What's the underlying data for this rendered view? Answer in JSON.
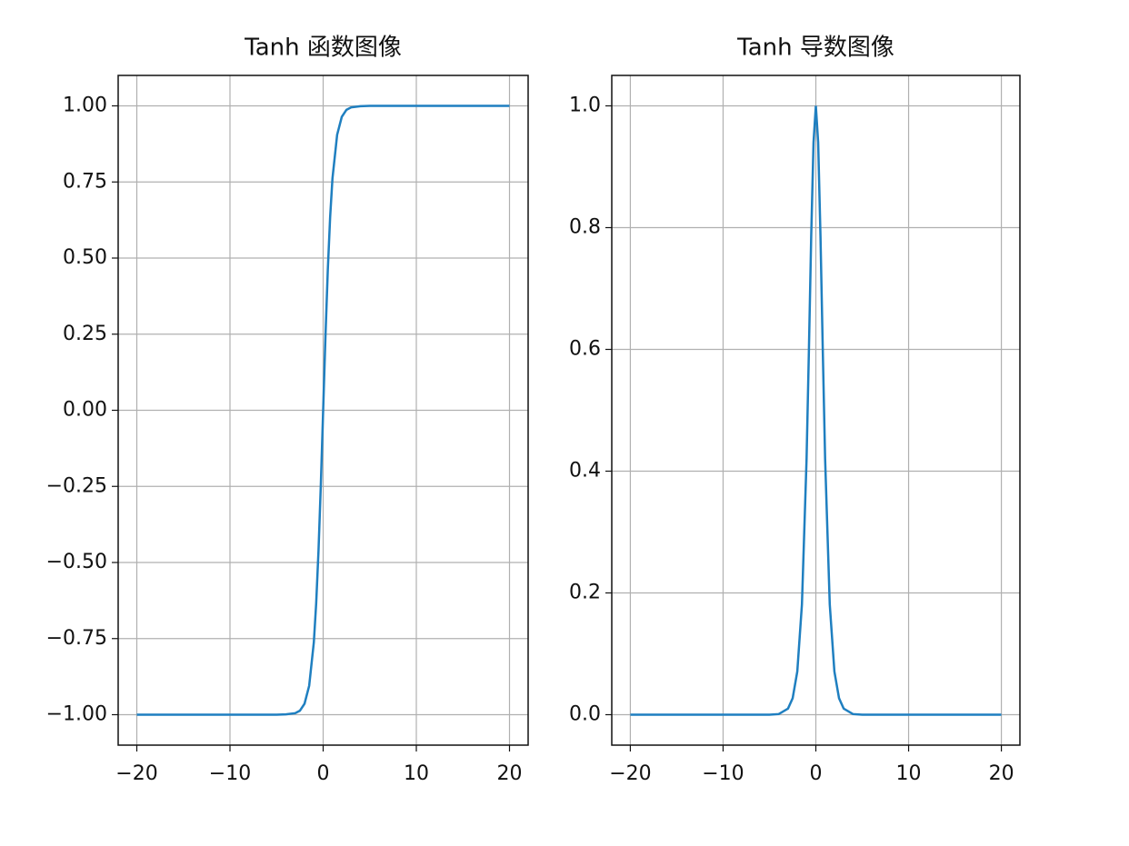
{
  "chart_data": [
    {
      "type": "line",
      "title": "Tanh 函数图像",
      "x": [
        -20,
        -10,
        -5,
        -4,
        -3,
        -2.5,
        -2,
        -1.5,
        -1,
        -0.75,
        -0.5,
        -0.25,
        0,
        0.25,
        0.5,
        0.75,
        1,
        1.5,
        2,
        2.5,
        3,
        4,
        5,
        10,
        20
      ],
      "series": [
        {
          "color": "#1f7fc0",
          "values": [
            -1,
            -1,
            -1,
            -0.999,
            -0.995,
            -0.987,
            -0.964,
            -0.905,
            -0.762,
            -0.635,
            -0.462,
            -0.245,
            0,
            0.245,
            0.462,
            0.635,
            0.762,
            0.905,
            0.964,
            0.987,
            0.995,
            0.999,
            1,
            1,
            1
          ]
        }
      ],
      "xlim": [
        -22,
        22
      ],
      "ylim": [
        -1.1,
        1.1
      ],
      "xticks": [
        {
          "value": -20,
          "label": "−20"
        },
        {
          "value": -10,
          "label": "−10"
        },
        0,
        10,
        20
      ],
      "yticks": [
        {
          "value": -1,
          "label": "−1.00"
        },
        {
          "value": -0.75,
          "label": "−0.75"
        },
        {
          "value": -0.5,
          "label": "−0.50"
        },
        {
          "value": -0.25,
          "label": "−0.25"
        },
        {
          "value": 0,
          "label": "0.00"
        },
        {
          "value": 0.25,
          "label": "0.25"
        },
        {
          "value": 0.5,
          "label": "0.50"
        },
        {
          "value": 0.75,
          "label": "0.75"
        },
        {
          "value": 1,
          "label": "1.00"
        }
      ],
      "grid": true
    },
    {
      "type": "line",
      "title": "Tanh 导数图像",
      "x": [
        -20,
        -10,
        -5,
        -4,
        -3,
        -2.5,
        -2,
        -1.5,
        -1,
        -0.75,
        -0.5,
        -0.25,
        0,
        0.25,
        0.5,
        0.75,
        1,
        1.5,
        2,
        2.5,
        3,
        4,
        5,
        10,
        20
      ],
      "series": [
        {
          "color": "#1f7fc0",
          "values": [
            0,
            0,
            0,
            0.001,
            0.01,
            0.027,
            0.071,
            0.181,
            0.42,
            0.597,
            0.786,
            0.94,
            1,
            0.94,
            0.786,
            0.597,
            0.42,
            0.181,
            0.071,
            0.027,
            0.01,
            0.001,
            0,
            0,
            0
          ]
        }
      ],
      "xlim": [
        -22,
        22
      ],
      "ylim": [
        -0.05,
        1.05
      ],
      "xticks": [
        {
          "value": -20,
          "label": "−20"
        },
        {
          "value": -10,
          "label": "−10"
        },
        0,
        10,
        20
      ],
      "yticks": [
        {
          "value": 0,
          "label": "0.0"
        },
        0.2,
        0.4,
        0.6,
        0.8,
        {
          "value": 1,
          "label": "1.0"
        }
      ],
      "grid": true
    }
  ]
}
